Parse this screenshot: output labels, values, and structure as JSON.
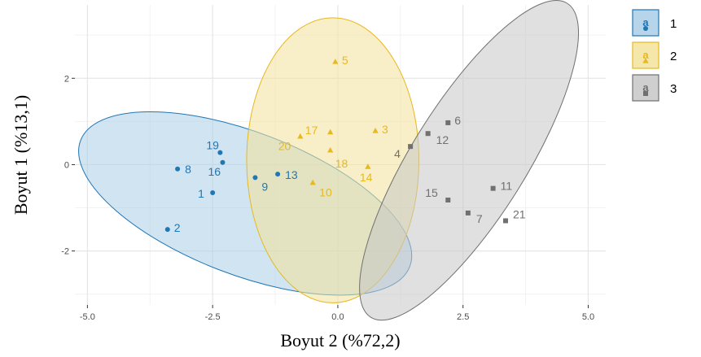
{
  "chart_data": {
    "type": "scatter",
    "xlabel": "Boyut 2 (%72,2)",
    "ylabel": "Boyut 1 (%13,1)",
    "xlim": [
      -5.25,
      5.35
    ],
    "ylim": [
      -3.25,
      3.7
    ],
    "x_ticks": [
      -5.0,
      -2.5,
      0.0,
      2.5,
      5.0
    ],
    "x_tick_labels": [
      "-5.0",
      "-2.5",
      "0.0",
      "2.5",
      "5.0"
    ],
    "y_ticks": [
      -2,
      0,
      2
    ],
    "y_tick_labels": [
      "-2",
      "0",
      "2"
    ],
    "grid": true,
    "legend_position": "right",
    "series": [
      {
        "name": "1",
        "color": "#1f77b4",
        "fill": "#a9cde6",
        "marker": "circle",
        "points": [
          {
            "label": "1",
            "x": -2.5,
            "y": -0.65
          },
          {
            "label": "2",
            "x": -3.4,
            "y": -1.5
          },
          {
            "label": "8",
            "x": -3.2,
            "y": -0.1
          },
          {
            "label": "9",
            "x": -1.65,
            "y": -0.3
          },
          {
            "label": "13",
            "x": -1.2,
            "y": -0.22
          },
          {
            "label": "16",
            "x": -2.3,
            "y": 0.05
          },
          {
            "label": "19",
            "x": -2.35,
            "y": 0.28
          }
        ],
        "ellipse": {
          "cx": -1.85,
          "cy": -0.9,
          "rx": 3.52,
          "ry": 1.65,
          "angle": 21
        }
      },
      {
        "name": "2",
        "color": "#e6b91e",
        "fill": "#f3e29a",
        "marker": "triangle",
        "points": [
          {
            "label": "3",
            "x": 0.75,
            "y": 0.78
          },
          {
            "label": "5",
            "x": -0.05,
            "y": 2.38
          },
          {
            "label": "10",
            "x": -0.5,
            "y": -0.42
          },
          {
            "label": "14",
            "x": 0.6,
            "y": -0.05
          },
          {
            "label": "17",
            "x": -0.75,
            "y": 0.65
          },
          {
            "label": "18",
            "x": -0.15,
            "y": 0.33
          },
          {
            "label": "20",
            "x": -0.15,
            "y": 0.75
          }
        ],
        "ellipse": {
          "cx": -0.1,
          "cy": 0.1,
          "rx": 1.72,
          "ry": 3.3,
          "angle": 0
        }
      },
      {
        "name": "3",
        "color": "#707070",
        "fill": "#c7c7c7",
        "marker": "square",
        "points": [
          {
            "label": "4",
            "x": 1.45,
            "y": 0.42
          },
          {
            "label": "6",
            "x": 2.2,
            "y": 0.97
          },
          {
            "label": "7",
            "x": 2.6,
            "y": -1.12
          },
          {
            "label": "11",
            "x": 3.1,
            "y": -0.55
          },
          {
            "label": "12",
            "x": 1.8,
            "y": 0.72
          },
          {
            "label": "15",
            "x": 2.2,
            "y": -0.82
          },
          {
            "label": "21",
            "x": 3.35,
            "y": -1.3
          }
        ],
        "ellipse": {
          "cx": 2.62,
          "cy": 0.1,
          "rx": 3.7,
          "ry": 1.32,
          "angle": -58
        }
      }
    ]
  }
}
